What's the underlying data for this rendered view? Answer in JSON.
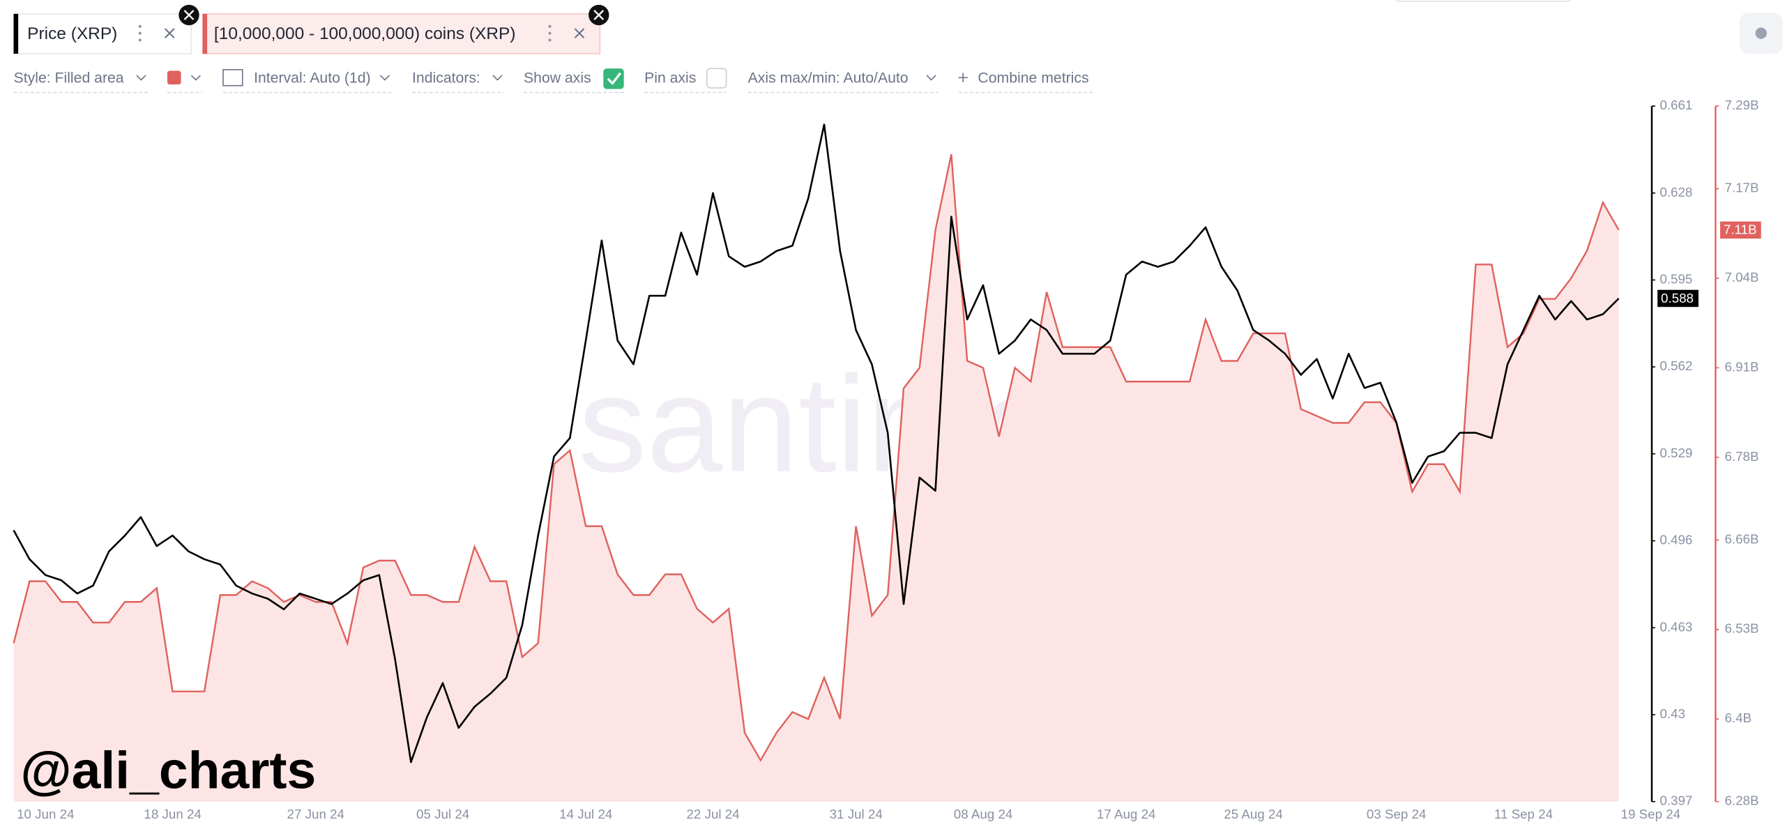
{
  "ui": {
    "toolbar": {
      "style": "Style: Filled area",
      "interval": "Interval: Auto (1d)",
      "indicators": "Indicators:",
      "show_axis": "Show axis",
      "pin_axis": "Pin axis",
      "axis_range": "Axis max/min: Auto/Auto",
      "combine": "Combine metrics"
    },
    "watermark": "santiment",
    "handle": "@ali_charts"
  },
  "chart_data": {
    "type": "line-area",
    "x": [
      "10 Jun 24",
      "11 Jun 24",
      "12 Jun 24",
      "13 Jun 24",
      "14 Jun 24",
      "15 Jun 24",
      "16 Jun 24",
      "17 Jun 24",
      "18 Jun 24",
      "19 Jun 24",
      "20 Jun 24",
      "21 Jun 24",
      "22 Jun 24",
      "23 Jun 24",
      "24 Jun 24",
      "25 Jun 24",
      "26 Jun 24",
      "27 Jun 24",
      "28 Jun 24",
      "29 Jun 24",
      "30 Jun 24",
      "01 Jul 24",
      "02 Jul 24",
      "03 Jul 24",
      "04 Jul 24",
      "05 Jul 24",
      "06 Jul 24",
      "07 Jul 24",
      "08 Jul 24",
      "09 Jul 24",
      "10 Jul 24",
      "11 Jul 24",
      "12 Jul 24",
      "13 Jul 24",
      "14 Jul 24",
      "15 Jul 24",
      "16 Jul 24",
      "17 Jul 24",
      "18 Jul 24",
      "19 Jul 24",
      "20 Jul 24",
      "21 Jul 24",
      "22 Jul 24",
      "23 Jul 24",
      "24 Jul 24",
      "25 Jul 24",
      "26 Jul 24",
      "27 Jul 24",
      "28 Jul 24",
      "29 Jul 24",
      "30 Jul 24",
      "31 Jul 24",
      "01 Aug 24",
      "02 Aug 24",
      "03 Aug 24",
      "04 Aug 24",
      "05 Aug 24",
      "06 Aug 24",
      "07 Aug 24",
      "08 Aug 24",
      "09 Aug 24",
      "10 Aug 24",
      "11 Aug 24",
      "12 Aug 24",
      "13 Aug 24",
      "14 Aug 24",
      "15 Aug 24",
      "16 Aug 24",
      "17 Aug 24",
      "18 Aug 24",
      "19 Aug 24",
      "20 Aug 24",
      "21 Aug 24",
      "22 Aug 24",
      "23 Aug 24",
      "24 Aug 24",
      "25 Aug 24",
      "26 Aug 24",
      "27 Aug 24",
      "28 Aug 24",
      "29 Aug 24",
      "30 Aug 24",
      "31 Aug 24",
      "01 Sep 24",
      "02 Sep 24",
      "03 Sep 24",
      "04 Sep 24",
      "05 Sep 24",
      "06 Sep 24",
      "07 Sep 24",
      "08 Sep 24",
      "09 Sep 24",
      "10 Sep 24",
      "11 Sep 24",
      "12 Sep 24",
      "13 Sep 24",
      "14 Sep 24",
      "15 Sep 24",
      "16 Sep 24",
      "17 Sep 24",
      "18 Sep 24",
      "19 Sep 24"
    ],
    "xticks": [
      "10 Jun 24",
      "18 Jun 24",
      "27 Jun 24",
      "05 Jul 24",
      "14 Jul 24",
      "22 Jul 24",
      "31 Jul 24",
      "08 Aug 24",
      "17 Aug 24",
      "25 Aug 24",
      "03 Sep 24",
      "11 Sep 24",
      "19 Sep 24"
    ],
    "ylim": [
      0.397,
      0.661
    ],
    "yticks": [
      0.661,
      0.628,
      0.595,
      0.562,
      0.529,
      0.496,
      0.463,
      0.43,
      0.397
    ],
    "y2lim": [
      6.28,
      7.29
    ],
    "y2ticks": [
      {
        "value": 7.29,
        "label": "7.29B"
      },
      {
        "value": 7.17,
        "label": "7.17B"
      },
      {
        "value": 7.04,
        "label": "7.04B"
      },
      {
        "value": 6.91,
        "label": "6.91B"
      },
      {
        "value": 6.78,
        "label": "6.78B"
      },
      {
        "value": 6.66,
        "label": "6.66B"
      },
      {
        "value": 6.53,
        "label": "6.53B"
      },
      {
        "value": 6.4,
        "label": "6.4B"
      },
      {
        "value": 6.28,
        "label": "6.28B"
      }
    ],
    "grid": false,
    "series": [
      {
        "name": "Price (XRP)",
        "style": "line",
        "color": "#000000",
        "badge": 0.588,
        "values": [
          0.5,
          0.489,
          0.483,
          0.481,
          0.476,
          0.479,
          0.492,
          0.498,
          0.505,
          0.494,
          0.498,
          0.492,
          0.489,
          0.487,
          0.479,
          0.476,
          0.474,
          0.47,
          0.476,
          0.474,
          0.472,
          0.476,
          0.481,
          0.483,
          0.451,
          0.412,
          0.429,
          0.442,
          0.425,
          0.433,
          0.438,
          0.444,
          0.464,
          0.498,
          0.528,
          0.535,
          0.572,
          0.61,
          0.572,
          0.563,
          0.589,
          0.589,
          0.613,
          0.597,
          0.628,
          0.604,
          0.6,
          0.602,
          0.606,
          0.608,
          0.626,
          0.654,
          0.606,
          0.576,
          0.563,
          0.537,
          0.472,
          0.52,
          0.515,
          0.619,
          0.58,
          0.593,
          0.567,
          0.572,
          0.58,
          0.576,
          0.567,
          0.567,
          0.567,
          0.572,
          0.597,
          0.602,
          0.6,
          0.602,
          0.608,
          0.615,
          0.6,
          0.591,
          0.576,
          0.572,
          0.567,
          0.559,
          0.565,
          0.55,
          0.567,
          0.554,
          0.556,
          0.541,
          0.518,
          0.528,
          0.53,
          0.537,
          0.537,
          0.535,
          0.563,
          0.576,
          0.589,
          0.58,
          0.587,
          0.58,
          0.582,
          0.588
        ]
      },
      {
        "name": "[10,000,000 - 100,000,000) coins (XRP)",
        "style": "area",
        "axis": "y2",
        "color": "#e0625e",
        "fill": "#fde5e5",
        "badge": {
          "value": 7.11,
          "label": "7.11B"
        },
        "values": [
          6.51,
          6.6,
          6.6,
          6.57,
          6.57,
          6.54,
          6.54,
          6.57,
          6.57,
          6.59,
          6.44,
          6.44,
          6.44,
          6.58,
          6.58,
          6.6,
          6.59,
          6.57,
          6.58,
          6.57,
          6.57,
          6.51,
          6.62,
          6.63,
          6.63,
          6.58,
          6.58,
          6.57,
          6.57,
          6.65,
          6.6,
          6.6,
          6.49,
          6.51,
          6.77,
          6.79,
          6.68,
          6.68,
          6.61,
          6.58,
          6.58,
          6.61,
          6.61,
          6.56,
          6.54,
          6.56,
          6.38,
          6.34,
          6.38,
          6.41,
          6.4,
          6.46,
          6.4,
          6.68,
          6.55,
          6.58,
          6.88,
          6.91,
          7.11,
          7.22,
          6.92,
          6.91,
          6.81,
          6.91,
          6.89,
          7.02,
          6.94,
          6.94,
          6.94,
          6.94,
          6.89,
          6.89,
          6.89,
          6.89,
          6.89,
          6.98,
          6.92,
          6.92,
          6.96,
          6.96,
          6.96,
          6.85,
          6.84,
          6.83,
          6.83,
          6.86,
          6.86,
          6.83,
          6.73,
          6.77,
          6.77,
          6.73,
          7.06,
          7.06,
          6.94,
          6.96,
          7.01,
          7.01,
          7.04,
          7.08,
          7.15,
          7.11
        ]
      }
    ]
  }
}
